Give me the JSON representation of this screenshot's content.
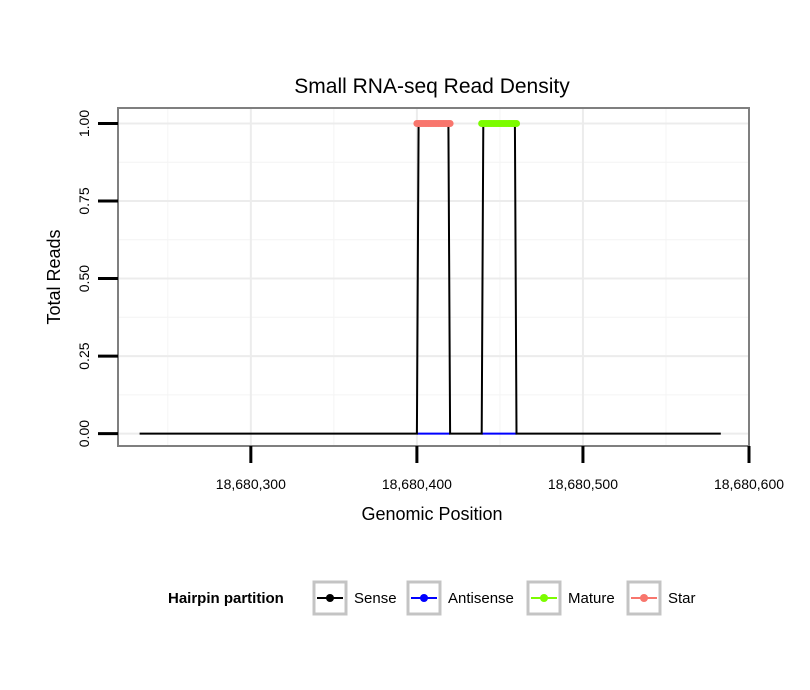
{
  "chart_data": {
    "type": "line",
    "title": "Small RNA-seq Read Density",
    "xlabel": "Genomic Position",
    "ylabel": "Total Reads",
    "xlim": [
      18680220,
      18680600
    ],
    "ylim": [
      -0.04,
      1.05
    ],
    "xticks": [
      18680300,
      18680400,
      18680500,
      18680600
    ],
    "xtick_labels": [
      "18,680,300",
      "18,680,400",
      "18,680,500",
      "18,680,600"
    ],
    "yticks": [
      0,
      0.25,
      0.5,
      0.75,
      1.0
    ],
    "ytick_labels": [
      "0.00",
      "0.25",
      "0.50",
      "0.75",
      "1.00"
    ],
    "grid": true,
    "legend": {
      "title": "Hairpin partition",
      "position": "bottom",
      "entries": [
        {
          "name": "Sense",
          "color": "#000000"
        },
        {
          "name": "Antisense",
          "color": "#0000ff"
        },
        {
          "name": "Mature",
          "color": "#7cfc00"
        },
        {
          "name": "Star",
          "color": "#f8766d"
        }
      ]
    },
    "series": [
      {
        "name": "Antisense",
        "color": "#0000ff",
        "style": "line",
        "x": [
          18680400,
          18680420,
          18680439,
          18680460
        ],
        "y": [
          0,
          0,
          0,
          0
        ],
        "segments": [
          [
            18680400,
            18680420
          ],
          [
            18680439,
            18680460
          ]
        ]
      },
      {
        "name": "Sense",
        "color": "#000000",
        "style": "line",
        "x": [
          18680233,
          18680400,
          18680401,
          18680419,
          18680420,
          18680439,
          18680440,
          18680459,
          18680460,
          18680583
        ],
        "y": [
          0,
          0,
          1,
          1,
          0,
          0,
          1,
          1,
          0,
          0
        ]
      },
      {
        "name": "Star",
        "color": "#f8766d",
        "style": "points",
        "x": [
          18680400,
          18680401,
          18680402,
          18680403,
          18680404,
          18680405,
          18680406,
          18680407,
          18680408,
          18680409,
          18680410,
          18680411,
          18680412,
          18680413,
          18680414,
          18680415,
          18680416,
          18680417,
          18680418,
          18680419,
          18680420
        ],
        "y": [
          1,
          1,
          1,
          1,
          1,
          1,
          1,
          1,
          1,
          1,
          1,
          1,
          1,
          1,
          1,
          1,
          1,
          1,
          1,
          1,
          1
        ]
      },
      {
        "name": "Mature",
        "color": "#7cfc00",
        "style": "points",
        "x": [
          18680439,
          18680440,
          18680441,
          18680442,
          18680443,
          18680444,
          18680445,
          18680446,
          18680447,
          18680448,
          18680449,
          18680450,
          18680451,
          18680452,
          18680453,
          18680454,
          18680455,
          18680456,
          18680457,
          18680458,
          18680459,
          18680460
        ],
        "y": [
          1,
          1,
          1,
          1,
          1,
          1,
          1,
          1,
          1,
          1,
          1,
          1,
          1,
          1,
          1,
          1,
          1,
          1,
          1,
          1,
          1,
          1
        ]
      }
    ]
  }
}
